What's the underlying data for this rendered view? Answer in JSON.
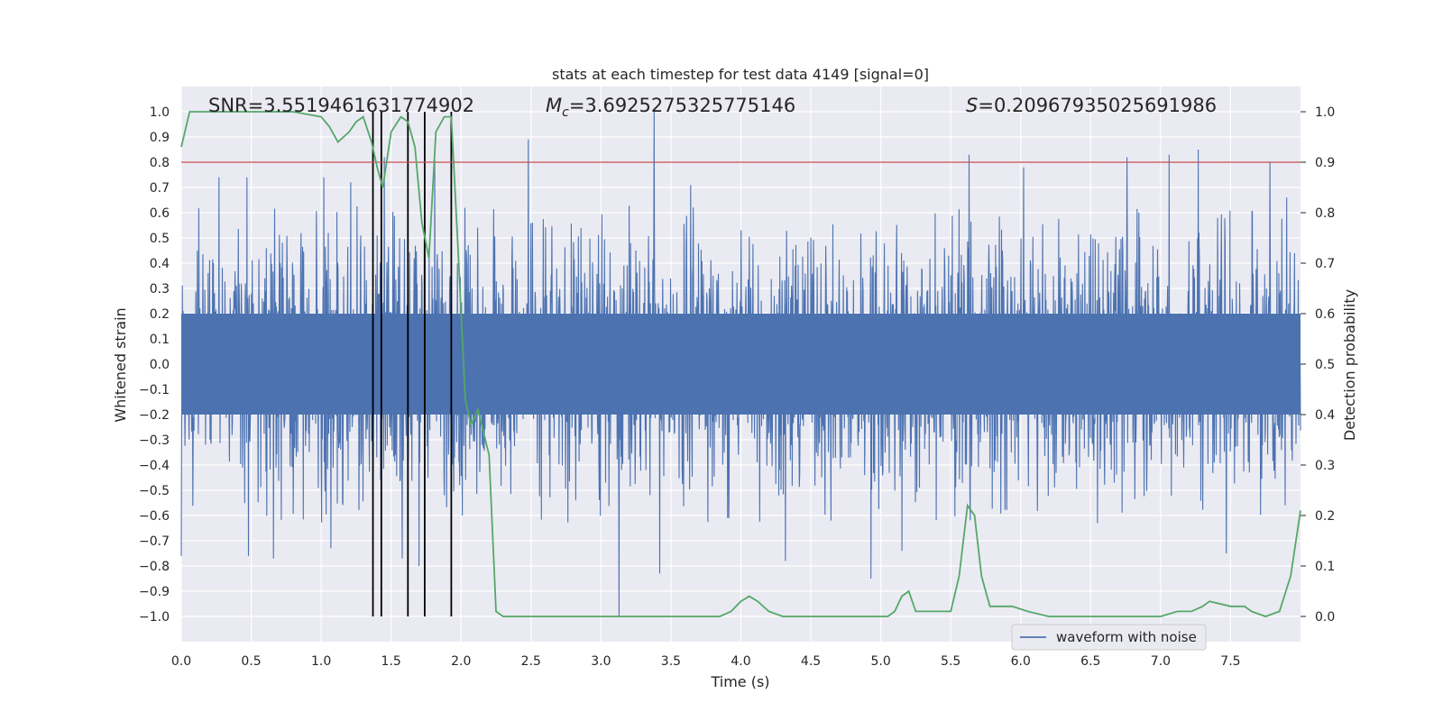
{
  "chart_data": {
    "type": "line",
    "title": "stats at each timestep for test data 4149 [signal=0]",
    "xlabel": "Time (s)",
    "ylabel": "Whitened strain",
    "y2label": "Detection probability",
    "xlim": [
      0.0,
      8.0
    ],
    "ylim": [
      -1.1,
      1.1
    ],
    "y2lim": [
      -0.05,
      1.05
    ],
    "xticks": [
      0.0,
      0.5,
      1.0,
      1.5,
      2.0,
      2.5,
      3.0,
      3.5,
      4.0,
      4.5,
      5.0,
      5.5,
      6.0,
      6.5,
      7.0,
      7.5
    ],
    "xtick_labels": [
      "0.0",
      "0.5",
      "1.0",
      "1.5",
      "2.0",
      "2.5",
      "3.0",
      "3.5",
      "4.0",
      "4.5",
      "5.0",
      "5.5",
      "6.0",
      "6.5",
      "7.0",
      "7.5"
    ],
    "yticks": [
      -1.0,
      -0.9,
      -0.8,
      -0.7,
      -0.6,
      -0.5,
      -0.4,
      -0.3,
      -0.2,
      -0.1,
      0.0,
      0.1,
      0.2,
      0.3,
      0.4,
      0.5,
      0.6,
      0.7,
      0.8,
      0.9,
      1.0
    ],
    "ytick_labels": [
      "−1.0",
      "−0.9",
      "−0.8",
      "−0.7",
      "−0.6",
      "−0.5",
      "−0.4",
      "−0.3",
      "−0.2",
      "−0.1",
      "0.0",
      "0.1",
      "0.2",
      "0.3",
      "0.4",
      "0.5",
      "0.6",
      "0.7",
      "0.8",
      "0.9",
      "1.0"
    ],
    "y2ticks": [
      0.0,
      0.1,
      0.2,
      0.3,
      0.4,
      0.5,
      0.6,
      0.7,
      0.8,
      0.9,
      1.0
    ],
    "y2tick_labels": [
      "0.0",
      "0.1",
      "0.2",
      "0.3",
      "0.4",
      "0.5",
      "0.6",
      "0.7",
      "0.8",
      "0.9",
      "1.0"
    ],
    "annotations": {
      "snr": "SNR=3.5519461631774902",
      "mc_symbol": "M",
      "mc_sub": "c",
      "mc_value": "=3.6925275325775146",
      "s_symbol": "S",
      "s_value": "=0.20967935025691986"
    },
    "legend": {
      "label": "waveform with noise",
      "placement": "lower-right"
    },
    "threshold": {
      "y2": 0.9,
      "color": "#c44e52"
    },
    "vertical_markers_x": [
      1.37,
      1.43,
      1.62,
      1.74,
      1.93
    ],
    "waveform": {
      "name": "waveform with noise",
      "color": "#4c72b0",
      "duration": 8.0,
      "typical_envelope": 0.4,
      "spikes": [
        {
          "x": 0.27,
          "y": 0.74
        },
        {
          "x": 0.47,
          "y": 0.74
        },
        {
          "x": 1.02,
          "y": 0.74
        },
        {
          "x": 1.21,
          "y": 0.72
        },
        {
          "x": 1.45,
          "y": 0.82
        },
        {
          "x": 1.81,
          "y": 0.82
        },
        {
          "x": 2.48,
          "y": 0.89
        },
        {
          "x": 3.38,
          "y": 1.0
        },
        {
          "x": 3.64,
          "y": 0.71
        },
        {
          "x": 5.63,
          "y": 0.83
        },
        {
          "x": 6.02,
          "y": 0.78
        },
        {
          "x": 6.76,
          "y": 0.82
        },
        {
          "x": 7.06,
          "y": 0.83
        },
        {
          "x": 7.27,
          "y": 0.85
        },
        {
          "x": 7.78,
          "y": 0.8
        },
        {
          "x": 7.9,
          "y": 0.66
        },
        {
          "x": 0.0,
          "y": -0.76
        },
        {
          "x": 0.48,
          "y": -0.76
        },
        {
          "x": 0.66,
          "y": -0.77
        },
        {
          "x": 1.07,
          "y": -0.73
        },
        {
          "x": 1.58,
          "y": -0.77
        },
        {
          "x": 1.7,
          "y": -0.8
        },
        {
          "x": 3.13,
          "y": -1.0
        },
        {
          "x": 3.42,
          "y": -0.83
        },
        {
          "x": 4.32,
          "y": -0.78
        },
        {
          "x": 4.93,
          "y": -0.85
        },
        {
          "x": 5.15,
          "y": -0.74
        },
        {
          "x": 7.47,
          "y": -0.75
        }
      ]
    },
    "probability": {
      "name": "Detection probability",
      "color": "#55a868",
      "x": [
        0.0,
        0.06,
        0.25,
        0.5,
        0.8,
        1.0,
        1.06,
        1.12,
        1.2,
        1.25,
        1.3,
        1.36,
        1.4,
        1.44,
        1.5,
        1.57,
        1.62,
        1.67,
        1.72,
        1.77,
        1.82,
        1.88,
        1.93,
        1.98,
        2.03,
        2.07,
        2.12,
        2.2,
        2.25,
        2.3,
        2.45,
        2.6,
        3.1,
        3.6,
        3.85,
        3.93,
        4.0,
        4.06,
        4.12,
        4.2,
        4.3,
        4.5,
        4.8,
        5.05,
        5.1,
        5.15,
        5.2,
        5.25,
        5.32,
        5.38,
        5.45,
        5.5,
        5.56,
        5.62,
        5.67,
        5.72,
        5.78,
        5.85,
        5.94,
        6.05,
        6.2,
        6.5,
        7.0,
        7.12,
        7.22,
        7.3,
        7.35,
        7.5,
        7.6,
        7.65,
        7.75,
        7.85,
        7.93,
        8.0
      ],
      "y": [
        0.93,
        1.0,
        1.0,
        1.0,
        1.0,
        0.99,
        0.97,
        0.94,
        0.96,
        0.98,
        0.99,
        0.94,
        0.89,
        0.85,
        0.96,
        0.99,
        0.98,
        0.93,
        0.78,
        0.71,
        0.96,
        0.99,
        0.99,
        0.72,
        0.43,
        0.38,
        0.41,
        0.32,
        0.01,
        0.0,
        0.0,
        0.0,
        0.0,
        0.0,
        0.0,
        0.01,
        0.03,
        0.04,
        0.03,
        0.01,
        0.0,
        0.0,
        0.0,
        0.0,
        0.01,
        0.04,
        0.05,
        0.01,
        0.01,
        0.01,
        0.01,
        0.01,
        0.08,
        0.22,
        0.2,
        0.08,
        0.02,
        0.02,
        0.02,
        0.01,
        0.0,
        0.0,
        0.0,
        0.01,
        0.01,
        0.02,
        0.03,
        0.02,
        0.02,
        0.01,
        0.0,
        0.01,
        0.08,
        0.21
      ]
    }
  }
}
